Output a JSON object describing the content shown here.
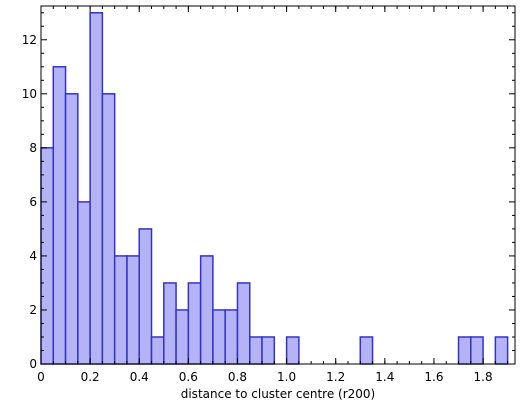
{
  "chart_data": {
    "type": "bar",
    "title": "",
    "xlabel": "distance to cluster centre (r200)",
    "ylabel": "",
    "xlim": [
      0,
      1.93
    ],
    "ylim": [
      0,
      13.25
    ],
    "bin_width": 0.05,
    "x_ticks": [
      0,
      0.2,
      0.4,
      0.6,
      0.8,
      1.0,
      1.2,
      1.4,
      1.6,
      1.8
    ],
    "x_tick_labels": [
      "0",
      "0.2",
      "0.4",
      "0.6",
      "0.8",
      "1.0",
      "1.2",
      "1.4",
      "1.6",
      "1.8"
    ],
    "y_ticks": [
      0,
      2,
      4,
      6,
      8,
      10,
      12
    ],
    "y_tick_labels": [
      "0",
      "2",
      "4",
      "6",
      "8",
      "10",
      "12"
    ],
    "bins": [
      {
        "x": 0.0,
        "count": 8
      },
      {
        "x": 0.05,
        "count": 11
      },
      {
        "x": 0.1,
        "count": 10
      },
      {
        "x": 0.15,
        "count": 6
      },
      {
        "x": 0.2,
        "count": 13
      },
      {
        "x": 0.25,
        "count": 10
      },
      {
        "x": 0.3,
        "count": 4
      },
      {
        "x": 0.35,
        "count": 4
      },
      {
        "x": 0.4,
        "count": 5
      },
      {
        "x": 0.45,
        "count": 1
      },
      {
        "x": 0.5,
        "count": 3
      },
      {
        "x": 0.55,
        "count": 2
      },
      {
        "x": 0.6,
        "count": 3
      },
      {
        "x": 0.65,
        "count": 4
      },
      {
        "x": 0.7,
        "count": 2
      },
      {
        "x": 0.75,
        "count": 2
      },
      {
        "x": 0.8,
        "count": 3
      },
      {
        "x": 0.85,
        "count": 1
      },
      {
        "x": 0.9,
        "count": 1
      },
      {
        "x": 1.0,
        "count": 1
      },
      {
        "x": 1.3,
        "count": 1
      },
      {
        "x": 1.7,
        "count": 1
      },
      {
        "x": 1.75,
        "count": 1
      },
      {
        "x": 1.85,
        "count": 1
      }
    ],
    "grid": false,
    "legend": "none",
    "bar_fill": "#b3b3f5",
    "bar_stroke": "#3333cc",
    "axis_color": "#000000"
  }
}
